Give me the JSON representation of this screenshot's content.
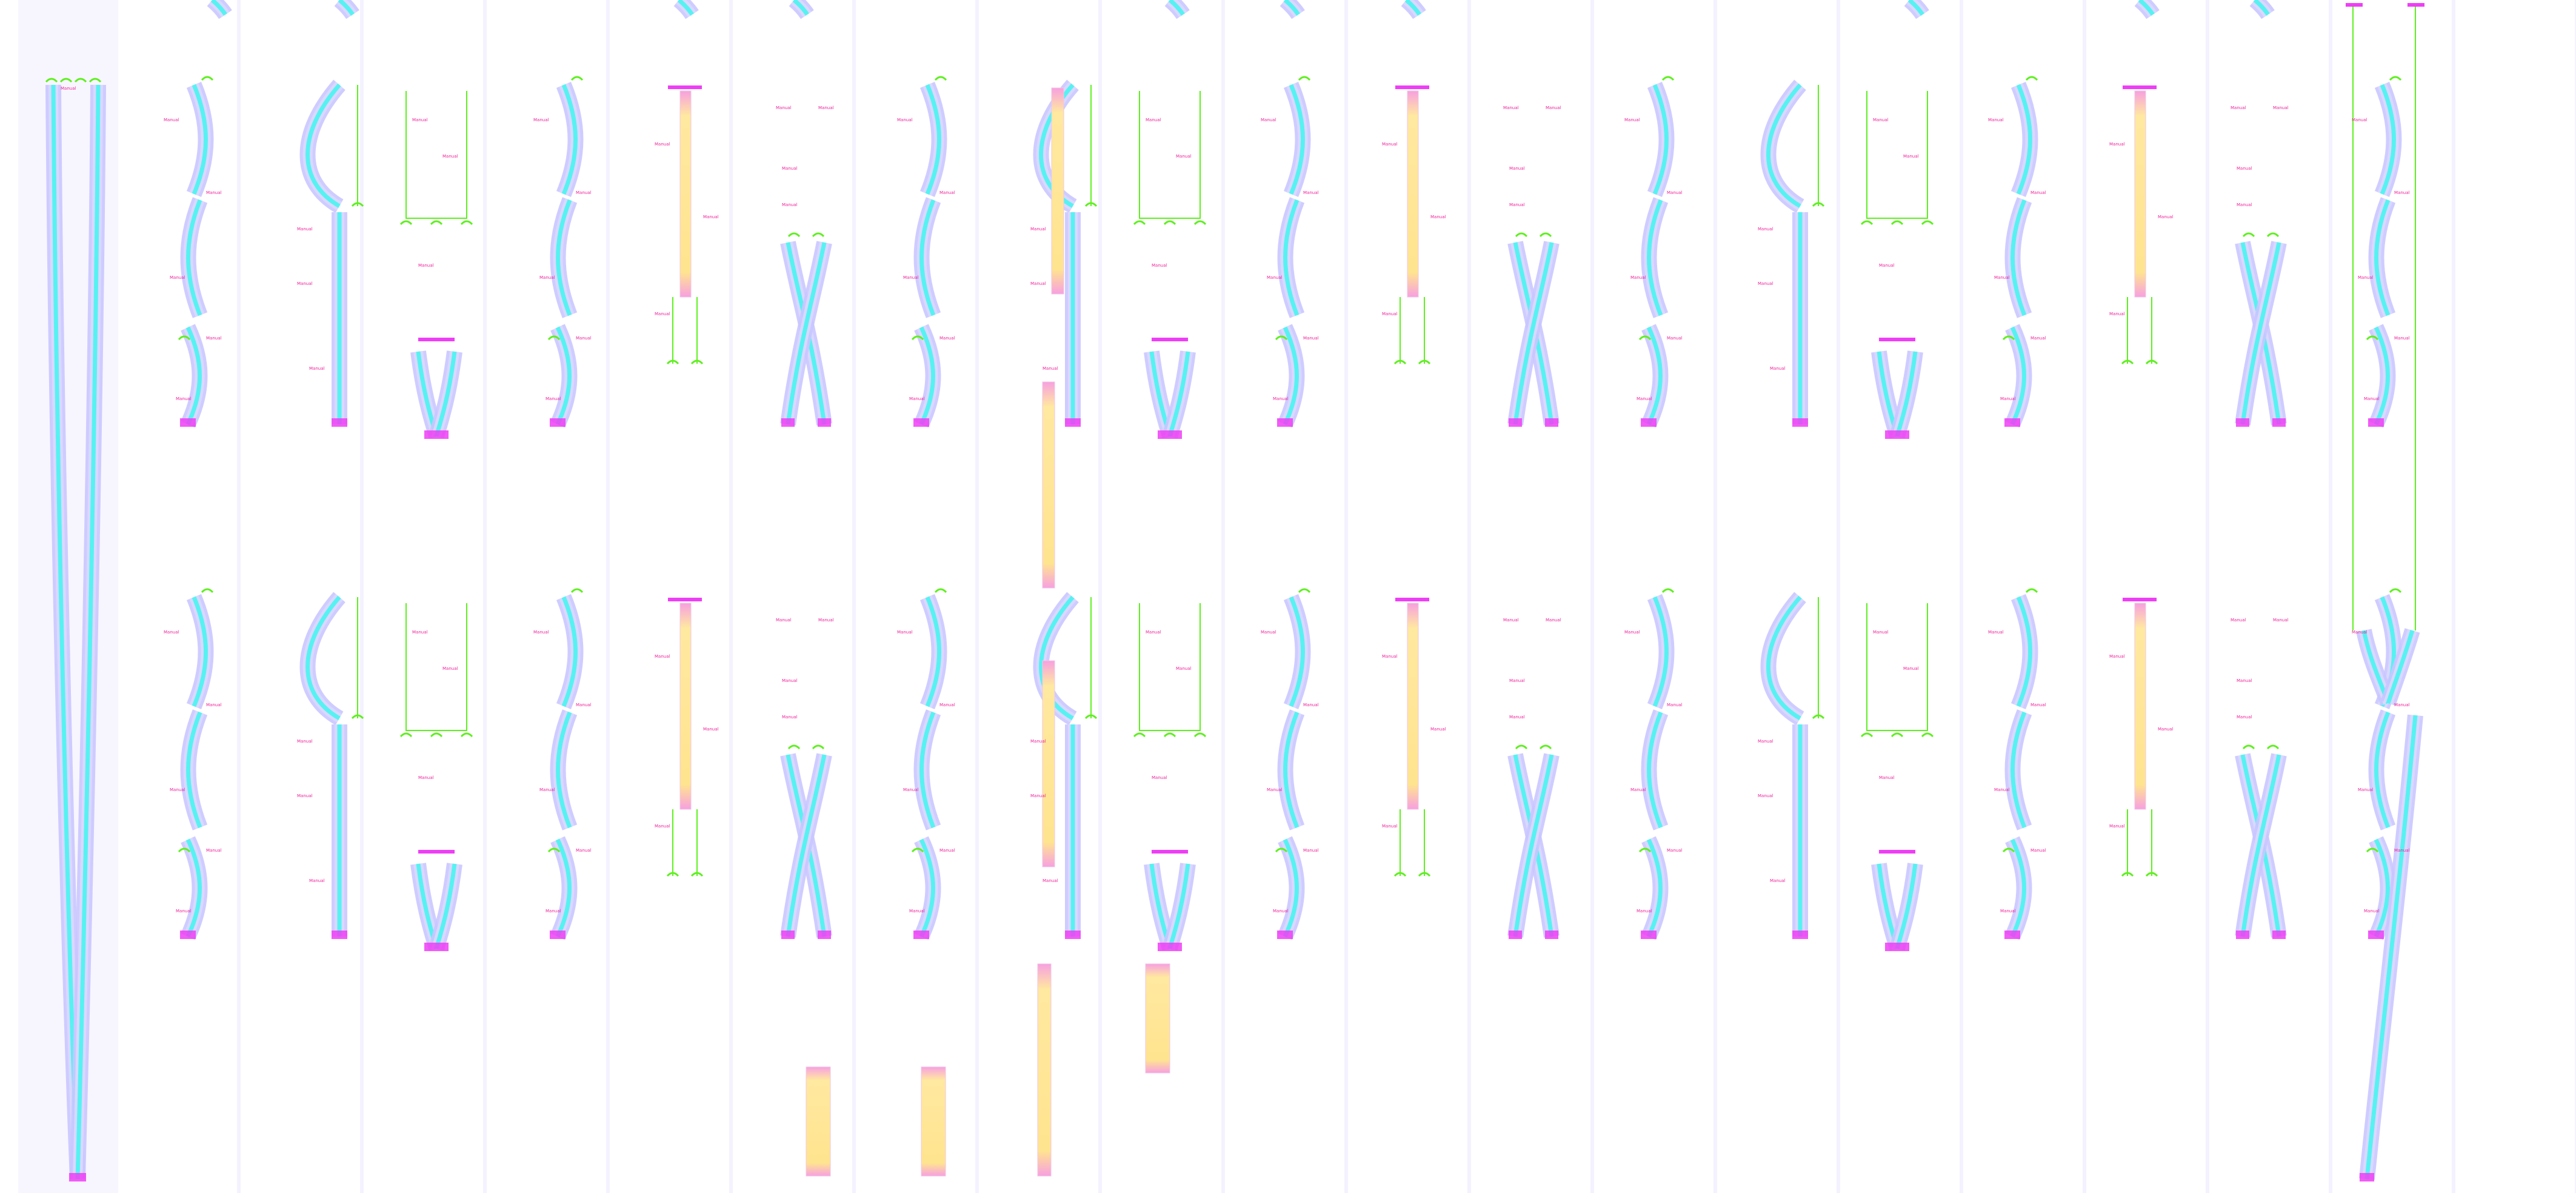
{
  "colors": {
    "background": "#ffffff",
    "column_band": "#f4f2ff",
    "track_outer": "#c9c6ff",
    "track_inner": "#3ef7ef",
    "track_end": "#ee3ef5",
    "connector_green": "#5ef01e",
    "magenta_label": "#f0209a",
    "yellow_bar": "#ffe48f",
    "yellow_bar_end": "#f7a0e0",
    "guide_yellow": "#ecec3a"
  },
  "labels": {
    "magenta_text": "Manual"
  },
  "icons": {
    "node_connector": "green-arc-connector-icon"
  }
}
